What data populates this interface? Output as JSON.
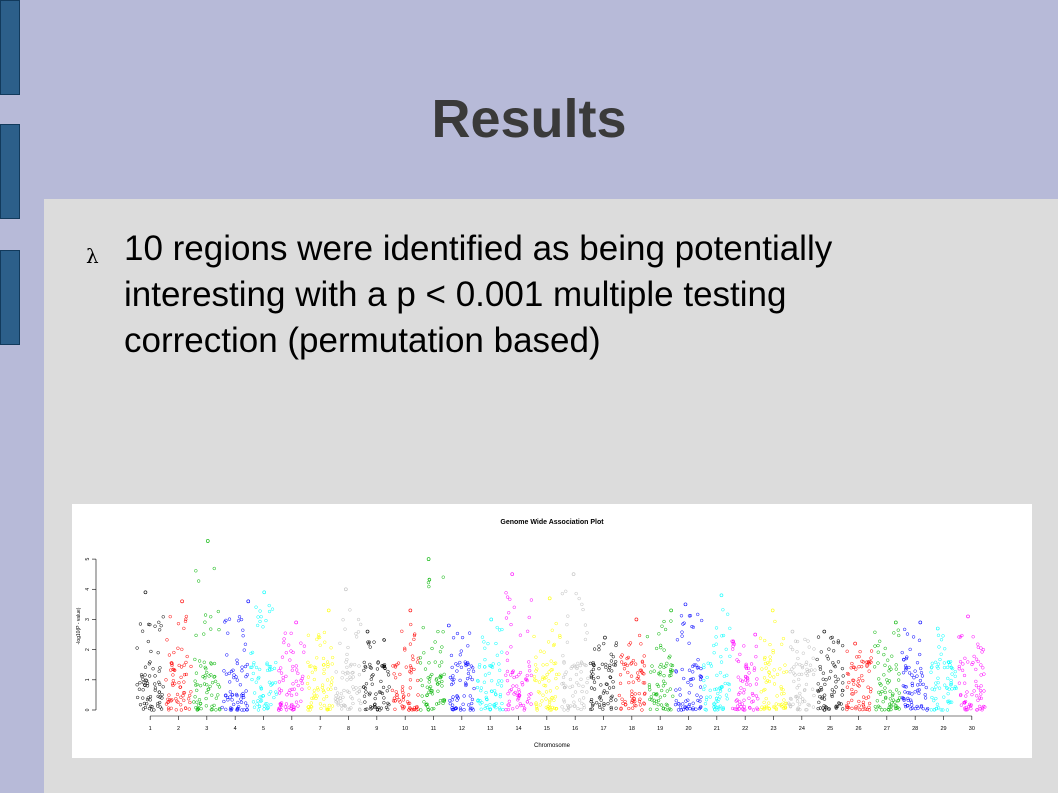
{
  "slide": {
    "title": "Results",
    "bullet_symbol": "λ",
    "bullet_text": "10 regions were identified as being potentially interesting with a p < 0.001 multiple testing correction (permutation based)"
  },
  "colors": {
    "background": "#dcdcdc",
    "accent_band": "#b7bad8",
    "rail_blocks": "#2c5f8a",
    "chromosome_cycle": [
      "#000000",
      "#ff0000",
      "#00b400",
      "#0000ff",
      "#00ffff",
      "#ff00ff",
      "#ffff00",
      "#bebebe"
    ]
  },
  "chart_data": {
    "type": "scatter",
    "subtype": "manhattan",
    "title": "Genome Wide Association Plot",
    "xlabel": "Chromosome",
    "ylabel": "-log10(P - value)",
    "ylim": [
      0,
      5.5
    ],
    "yticks": [
      0,
      1,
      2,
      3,
      4,
      5
    ],
    "categories": [
      "1",
      "2",
      "3",
      "4",
      "5",
      "6",
      "7",
      "8",
      "9",
      "10",
      "11",
      "12",
      "13",
      "14",
      "15",
      "16",
      "17",
      "18",
      "19",
      "20",
      "21",
      "22",
      "23",
      "24",
      "25",
      "26",
      "27",
      "28",
      "29",
      "30"
    ],
    "max_values": [
      3.9,
      3.6,
      5.6,
      3.6,
      3.9,
      2.9,
      3.3,
      4.0,
      2.6,
      3.3,
      5.0,
      2.8,
      3.0,
      4.5,
      3.7,
      4.5,
      2.4,
      3.0,
      3.3,
      3.5,
      3.8,
      2.5,
      3.3,
      2.6,
      2.6,
      2.2,
      2.9,
      2.9,
      2.7,
      3.1
    ],
    "grid": false,
    "legend": "none"
  }
}
